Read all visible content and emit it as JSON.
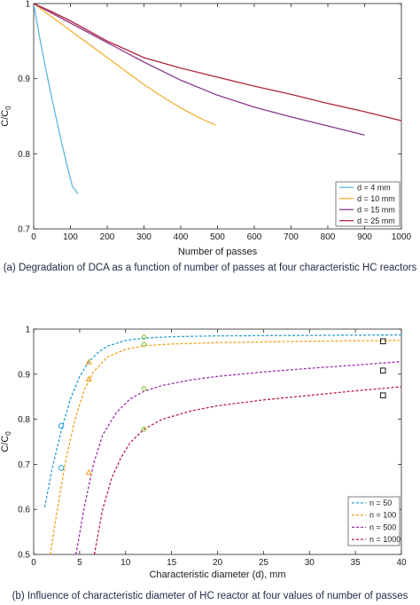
{
  "captions": {
    "a": "(a) Degradation of DCA as a function of number of passes at four characteristic HC reactors",
    "b": "(b) Influence of characteristic diameter of HC reactor at four values of number of passes"
  },
  "chart_data": [
    {
      "type": "line",
      "xlabel": "Number of passes",
      "ylabel": "C/C0",
      "xlim": [
        0,
        1000
      ],
      "ylim": [
        0.7,
        1
      ],
      "xticks": [
        0,
        100,
        200,
        300,
        400,
        500,
        600,
        700,
        800,
        900,
        1000
      ],
      "yticks": [
        0.7,
        0.8,
        0.9,
        1
      ],
      "ytick_labels": [
        "0.7",
        "0.8",
        "0.9",
        "1"
      ],
      "legend_position": "bottom-right",
      "series": [
        {
          "name": "d = 4 mm",
          "color": "#5cb8e4",
          "x": [
            0,
            10,
            20,
            30,
            45,
            60,
            75,
            90,
            105,
            120
          ],
          "y": [
            1.0,
            0.972,
            0.945,
            0.92,
            0.884,
            0.85,
            0.817,
            0.786,
            0.757,
            0.747
          ]
        },
        {
          "name": "d = 10 mm",
          "color": "#f2b134",
          "x": [
            0,
            25,
            50,
            100,
            150,
            200,
            250,
            300,
            350,
            400,
            450,
            495
          ],
          "y": [
            1.0,
            0.991,
            0.982,
            0.964,
            0.946,
            0.928,
            0.91,
            0.892,
            0.876,
            0.861,
            0.848,
            0.838
          ]
        },
        {
          "name": "d =  15 mm",
          "color": "#8a3a8a",
          "x": [
            0,
            50,
            100,
            200,
            300,
            400,
            500,
            600,
            700,
            800,
            900
          ],
          "y": [
            1.0,
            0.987,
            0.974,
            0.948,
            0.922,
            0.898,
            0.878,
            0.862,
            0.849,
            0.837,
            0.825
          ]
        },
        {
          "name": "d = 25 mm",
          "color": "#b0263e",
          "x": [
            0,
            50,
            100,
            200,
            300,
            400,
            500,
            600,
            700,
            800,
            900,
            1000
          ],
          "y": [
            1.0,
            0.989,
            0.977,
            0.95,
            0.928,
            0.914,
            0.902,
            0.89,
            0.879,
            0.867,
            0.856,
            0.844
          ]
        }
      ]
    },
    {
      "type": "scatter",
      "xlabel": "Characteristic diameter (d), mm",
      "ylabel": "C/C0",
      "xlim": [
        0,
        40
      ],
      "ylim": [
        0.5,
        1
      ],
      "xticks": [
        0,
        5,
        10,
        15,
        20,
        25,
        30,
        35,
        40
      ],
      "yticks": [
        0.5,
        0.6,
        0.7,
        0.8,
        0.9,
        1
      ],
      "ytick_labels": [
        "0.5",
        "0.6",
        "0.7",
        "0.8",
        "0.9",
        "1"
      ],
      "legend_position": "bottom-right",
      "series": [
        {
          "name": "n = 50",
          "color": "#2a9fd6",
          "x": [
            1.2,
            2,
            3,
            4,
            5,
            6,
            7,
            8,
            10,
            12,
            15,
            20,
            30,
            40
          ],
          "y": [
            0.605,
            0.69,
            0.775,
            0.845,
            0.895,
            0.928,
            0.948,
            0.962,
            0.975,
            0.98,
            0.983,
            0.985,
            0.986,
            0.987
          ]
        },
        {
          "name": "n = 100",
          "color": "#f0a018",
          "x": [
            1.8,
            2.5,
            3.5,
            4.5,
            5.5,
            6.5,
            8,
            10,
            12,
            15,
            20,
            30,
            40
          ],
          "y": [
            0.5,
            0.59,
            0.71,
            0.8,
            0.865,
            0.905,
            0.938,
            0.955,
            0.963,
            0.967,
            0.97,
            0.973,
            0.975
          ]
        },
        {
          "name": "n = 500",
          "color": "#9b30a8",
          "x": [
            4.6,
            5.5,
            6.5,
            7.5,
            9,
            10.5,
            12,
            14,
            17,
            20,
            25,
            30,
            35,
            40
          ],
          "y": [
            0.5,
            0.605,
            0.7,
            0.765,
            0.815,
            0.845,
            0.862,
            0.875,
            0.887,
            0.895,
            0.905,
            0.913,
            0.92,
            0.928
          ]
        },
        {
          "name": "n = 1000",
          "color": "#b8243f",
          "x": [
            6.6,
            7.5,
            8.5,
            9.5,
            10.5,
            12,
            14,
            17,
            20,
            25,
            30,
            35,
            40
          ],
          "y": [
            0.5,
            0.6,
            0.67,
            0.715,
            0.748,
            0.778,
            0.8,
            0.818,
            0.83,
            0.843,
            0.853,
            0.863,
            0.872
          ]
        }
      ],
      "markers": [
        {
          "shape": "circle",
          "color": "#2a9fd6",
          "x": 3,
          "y": 0.785
        },
        {
          "shape": "circle",
          "color": "#2a9fd6",
          "x": 3,
          "y": 0.692
        },
        {
          "shape": "triangle",
          "color": "#f0a018",
          "x": 6,
          "y": 0.927
        },
        {
          "shape": "triangle",
          "color": "#f0a018",
          "x": 6,
          "y": 0.889
        },
        {
          "shape": "triangle",
          "color": "#f0a018",
          "x": 6,
          "y": 0.682
        },
        {
          "shape": "diamond",
          "color": "#8dc63f",
          "x": 12,
          "y": 0.982
        },
        {
          "shape": "diamond",
          "color": "#8dc63f",
          "x": 12,
          "y": 0.966
        },
        {
          "shape": "diamond",
          "color": "#8dc63f",
          "x": 12,
          "y": 0.868
        },
        {
          "shape": "diamond",
          "color": "#8dc63f",
          "x": 12,
          "y": 0.778
        },
        {
          "shape": "square",
          "color": "#1a1a1a",
          "x": 38,
          "y": 0.973
        },
        {
          "shape": "square",
          "color": "#1a1a1a",
          "x": 38,
          "y": 0.908
        },
        {
          "shape": "square",
          "color": "#1a1a1a",
          "x": 38,
          "y": 0.853
        }
      ]
    }
  ]
}
